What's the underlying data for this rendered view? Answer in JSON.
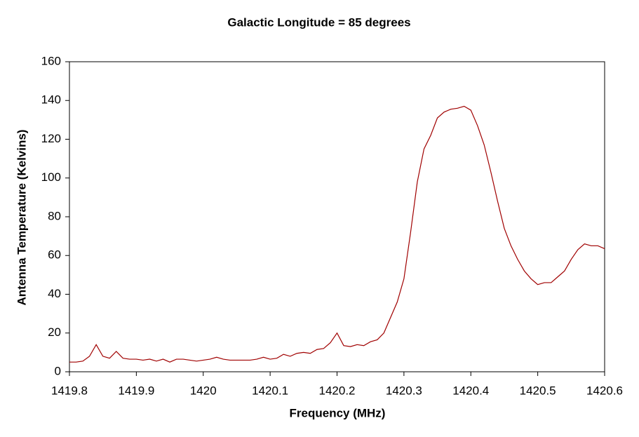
{
  "chart_data": {
    "type": "line",
    "title": "Galactic Longitude = 85 degrees",
    "xlabel": "Frequency (MHz)",
    "ylabel": "Antenna Temperature (Kelvins)",
    "x": [
      1419.8,
      1419.81,
      1419.82,
      1419.83,
      1419.84,
      1419.85,
      1419.86,
      1419.87,
      1419.88,
      1419.89,
      1419.9,
      1419.91,
      1419.92,
      1419.93,
      1419.94,
      1419.95,
      1419.96,
      1419.97,
      1419.98,
      1419.99,
      1420.0,
      1420.01,
      1420.02,
      1420.03,
      1420.04,
      1420.05,
      1420.06,
      1420.07,
      1420.08,
      1420.09,
      1420.1,
      1420.11,
      1420.12,
      1420.13,
      1420.14,
      1420.15,
      1420.16,
      1420.17,
      1420.18,
      1420.19,
      1420.2,
      1420.21,
      1420.22,
      1420.23,
      1420.24,
      1420.25,
      1420.26,
      1420.27,
      1420.28,
      1420.29,
      1420.3,
      1420.31,
      1420.32,
      1420.33,
      1420.34,
      1420.35,
      1420.36,
      1420.37,
      1420.38,
      1420.39,
      1420.4,
      1420.41,
      1420.42,
      1420.43,
      1420.44,
      1420.45,
      1420.46,
      1420.47,
      1420.48,
      1420.49,
      1420.5,
      1420.51,
      1420.52,
      1420.53,
      1420.54,
      1420.55,
      1420.56,
      1420.57,
      1420.58,
      1420.59,
      1420.6
    ],
    "series": [
      {
        "name": "Antenna Temperature",
        "color": "#a00000",
        "values": [
          5,
          5,
          5.5,
          8,
          14,
          8,
          7,
          10.5,
          7,
          6.5,
          6.5,
          6,
          6.5,
          5.5,
          6.5,
          5,
          6.5,
          6.5,
          6,
          5.5,
          6,
          6.5,
          7.5,
          6.5,
          6,
          6,
          6,
          6,
          6.5,
          7.5,
          6.5,
          7,
          9,
          8,
          9.5,
          10,
          9.5,
          11.5,
          12,
          15,
          20,
          13.5,
          13,
          14,
          13.5,
          15.5,
          16.5,
          20,
          28,
          36,
          48,
          72,
          98,
          115,
          122,
          131,
          134,
          135.5,
          136,
          137,
          135,
          127,
          117,
          103,
          88,
          74,
          65,
          58,
          52,
          48,
          45,
          46,
          46,
          49,
          52,
          58,
          63,
          66,
          65,
          65,
          63.5
        ]
      }
    ],
    "xlim": [
      1419.8,
      1420.6
    ],
    "xticks": [
      1419.8,
      1419.9,
      1420,
      1420.1,
      1420.2,
      1420.3,
      1420.4,
      1420.5,
      1420.6
    ],
    "ylim": [
      0,
      160
    ],
    "yticks": [
      0,
      20,
      40,
      60,
      80,
      100,
      120,
      140,
      160
    ],
    "grid": false
  }
}
